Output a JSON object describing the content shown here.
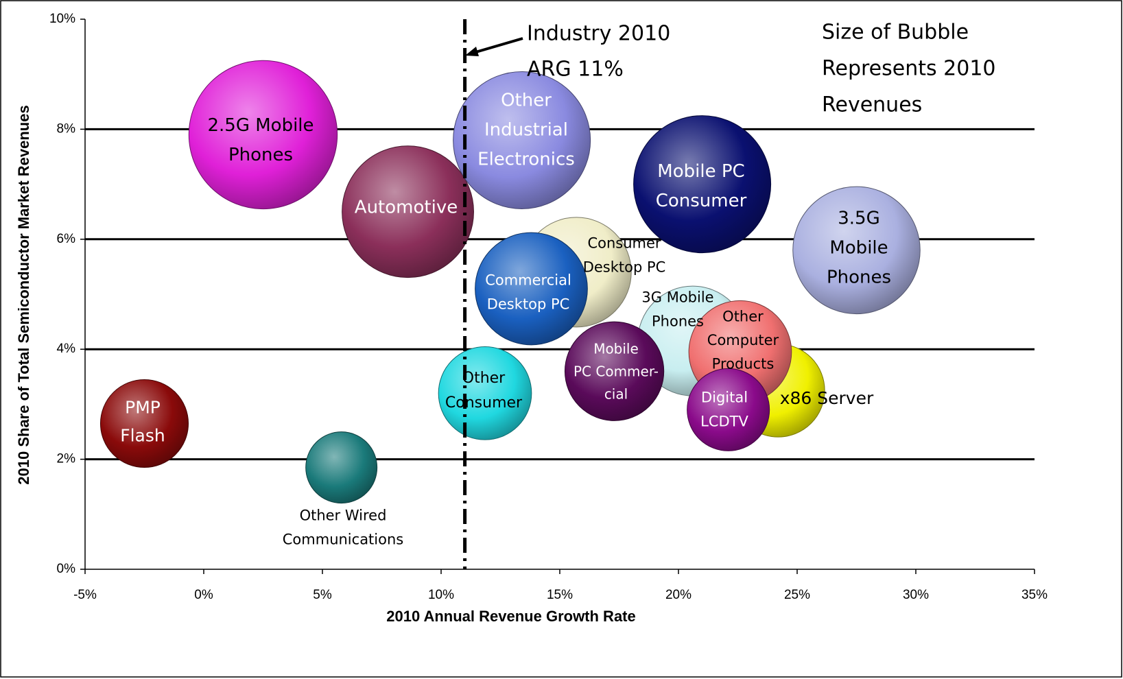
{
  "chart_data": {
    "type": "bubble",
    "xlabel": "2010 Annual Revenue Growth Rate",
    "ylabel": "2010 Share of Total Semiconductor Market Revenues",
    "xlim": [
      -5,
      35
    ],
    "ylim": [
      0,
      10
    ],
    "xticks": [
      {
        "value": -5,
        "label": "-5%"
      },
      {
        "value": 0,
        "label": "0%"
      },
      {
        "value": 5,
        "label": "5%"
      },
      {
        "value": 10,
        "label": "10%"
      },
      {
        "value": 15,
        "label": "15%"
      },
      {
        "value": 20,
        "label": "20%"
      },
      {
        "value": 25,
        "label": "25%"
      },
      {
        "value": 30,
        "label": "30%"
      },
      {
        "value": 35,
        "label": "35%"
      }
    ],
    "yticks": [
      {
        "value": 0,
        "label": "0%"
      },
      {
        "value": 2,
        "label": "2%"
      },
      {
        "value": 4,
        "label": "4%"
      },
      {
        "value": 6,
        "label": "6%"
      },
      {
        "value": 8,
        "label": "8%"
      },
      {
        "value": 10,
        "label": "10%"
      }
    ],
    "grid": true,
    "reference_line": {
      "x": 11,
      "label": [
        "Industry 2010",
        "ARG 11%"
      ]
    },
    "annotation": [
      "Size of Bubble",
      "Represents 2010",
      "Revenues"
    ],
    "series": [
      {
        "name": [
          "2.5G Mobile",
          "Phones"
        ],
        "color": "#e020d8",
        "label_color": "#000000",
        "x": 2.5,
        "y": 7.9,
        "size": 117
      },
      {
        "name": [
          "Automotive"
        ],
        "color": "#8b2f5a",
        "label_color": "#ffffff",
        "x": 8.6,
        "y": 6.5,
        "size": 92
      },
      {
        "name": [
          "Other",
          "Industrial",
          "Electronics"
        ],
        "color": "#8a8ae0",
        "label_color": "#ffffff",
        "x": 13.4,
        "y": 7.8,
        "size": 100
      },
      {
        "name": [
          "Mobile PC",
          "Consumer"
        ],
        "color": "#0a1070",
        "label_color": "#ffffff",
        "x": 21,
        "y": 7.0,
        "size": 100
      },
      {
        "name": [
          "3.5G",
          "Mobile",
          "Phones"
        ],
        "color": "#aab0e0",
        "label_color": "#000000",
        "x": 27.5,
        "y": 5.8,
        "size": 86
      },
      {
        "name": [
          "Consumer",
          "Desktop PC"
        ],
        "color": "#f0edc8",
        "label_color": "#000000",
        "x": 15.7,
        "y": 5.4,
        "size": 64
      },
      {
        "name": [
          "Commercial",
          "Desktop PC"
        ],
        "color": "#1a60c0",
        "label_color": "#ffffff",
        "x": 13.8,
        "y": 5.1,
        "size": 67
      },
      {
        "name": [
          "3G Mobile",
          "Phones"
        ],
        "color": "#c8eef0",
        "label_color": "#000000",
        "x": 20.6,
        "y": 4.15,
        "size": 64
      },
      {
        "name": [
          "x86 Server"
        ],
        "color": "#f0f000",
        "label_color": "#000000",
        "x": 24.2,
        "y": 3.25,
        "size": 46
      },
      {
        "name": [
          "Other",
          "Computer",
          "Products"
        ],
        "color": "#f07070",
        "label_color": "#000000",
        "x": 22.6,
        "y": 3.95,
        "size": 56
      },
      {
        "name": [
          "Mobile",
          "PC Commer-",
          "cial"
        ],
        "color": "#5a0a5a",
        "label_color": "#ffffff",
        "x": 17.3,
        "y": 3.6,
        "size": 52
      },
      {
        "name": [
          "Digital",
          "LCDTV"
        ],
        "color": "#8a0a8a",
        "label_color": "#ffffff",
        "x": 22.1,
        "y": 2.9,
        "size": 36
      },
      {
        "name": [
          "Other",
          "Consumer"
        ],
        "color": "#20d8e0",
        "label_color": "#000000",
        "x": 11.85,
        "y": 3.2,
        "size": 46
      },
      {
        "name": [
          "PMP",
          "Flash"
        ],
        "color": "#8a0a0a",
        "label_color": "#ffffff",
        "x": -2.5,
        "y": 2.65,
        "size": 41
      },
      {
        "name": [
          "Other Wired",
          "Communications"
        ],
        "color": "#1a7a7a",
        "label_color": "#000000",
        "x": 5.8,
        "y": 1.85,
        "size": 27
      }
    ]
  }
}
